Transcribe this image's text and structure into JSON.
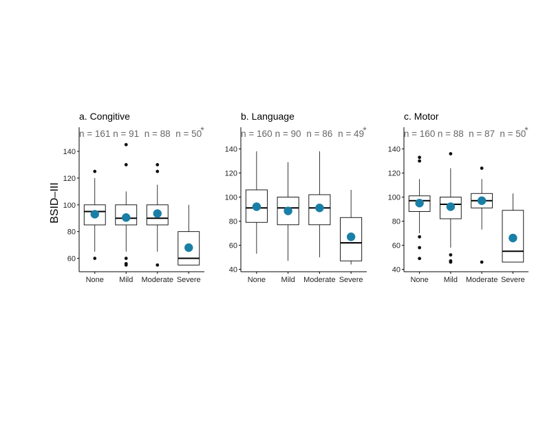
{
  "figure": {
    "ylabel": "BSID–III",
    "ylabel_panel_index": 0
  },
  "colors": {
    "mean_marker": "#1a7fa6",
    "box_stroke": "#000000",
    "ntext": "#666666"
  },
  "chart_data": [
    {
      "type": "box",
      "title": "a. Congitive",
      "categories": [
        "None",
        "Mild",
        "Moderate",
        "Severe"
      ],
      "n_labels": [
        "n = 161",
        "n = 91",
        "n = 88",
        "n = 50"
      ],
      "n_marker": "*",
      "ylim": [
        50,
        158
      ],
      "yticks": [
        60,
        80,
        100,
        120,
        140
      ],
      "series": [
        {
          "q1": 85,
          "median": 95,
          "q3": 100,
          "whisker_low": 65,
          "whisker_high": 120,
          "mean": 93,
          "outliers": [
            60,
            125
          ]
        },
        {
          "q1": 85,
          "median": 90,
          "q3": 100,
          "whisker_low": 65,
          "whisker_high": 110,
          "mean": 90.5,
          "outliers": [
            55,
            56,
            60,
            130,
            145
          ]
        },
        {
          "q1": 85,
          "median": 90,
          "q3": 100,
          "whisker_low": 65,
          "whisker_high": 115,
          "mean": 93.5,
          "outliers": [
            55,
            125,
            130
          ]
        },
        {
          "q1": 55,
          "median": 60,
          "q3": 80,
          "whisker_low": 55,
          "whisker_high": 100,
          "mean": 68,
          "outliers": []
        }
      ]
    },
    {
      "type": "box",
      "title": "b. Language",
      "categories": [
        "None",
        "Mild",
        "Moderate",
        "Severe"
      ],
      "n_labels": [
        "n = 160",
        "n = 90",
        "n = 86",
        "n = 49"
      ],
      "n_marker": "*",
      "ylim": [
        38,
        158
      ],
      "yticks": [
        40,
        60,
        80,
        100,
        120,
        140
      ],
      "series": [
        {
          "q1": 79,
          "median": 91,
          "q3": 106,
          "whisker_low": 53,
          "whisker_high": 138,
          "mean": 92,
          "outliers": []
        },
        {
          "q1": 77,
          "median": 91,
          "q3": 100,
          "whisker_low": 47,
          "whisker_high": 129,
          "mean": 88.5,
          "outliers": []
        },
        {
          "q1": 77,
          "median": 91,
          "q3": 102,
          "whisker_low": 50,
          "whisker_high": 138,
          "mean": 91,
          "outliers": []
        },
        {
          "q1": 47,
          "median": 62,
          "q3": 83,
          "whisker_low": 44,
          "whisker_high": 106,
          "mean": 67,
          "outliers": []
        }
      ]
    },
    {
      "type": "box",
      "title": "c. Motor",
      "categories": [
        "None",
        "Mild",
        "Moderate",
        "Severe"
      ],
      "n_labels": [
        "n = 160",
        "n = 88",
        "n = 87",
        "n = 50"
      ],
      "n_marker": "*",
      "ylim": [
        38,
        158
      ],
      "yticks": [
        40,
        60,
        80,
        100,
        120,
        140
      ],
      "series": [
        {
          "q1": 88,
          "median": 97,
          "q3": 101,
          "whisker_low": 70,
          "whisker_high": 115,
          "mean": 95,
          "outliers": [
            49,
            58,
            67,
            130,
            133
          ]
        },
        {
          "q1": 82,
          "median": 94,
          "q3": 100,
          "whisker_low": 58,
          "whisker_high": 124,
          "mean": 92,
          "outliers": [
            46,
            47,
            52,
            136
          ]
        },
        {
          "q1": 91,
          "median": 97,
          "q3": 103,
          "whisker_low": 73,
          "whisker_high": 115,
          "mean": 97,
          "outliers": [
            46,
            124
          ]
        },
        {
          "q1": 46,
          "median": 55,
          "q3": 89,
          "whisker_low": 46,
          "whisker_high": 103,
          "mean": 66,
          "outliers": []
        }
      ]
    }
  ]
}
